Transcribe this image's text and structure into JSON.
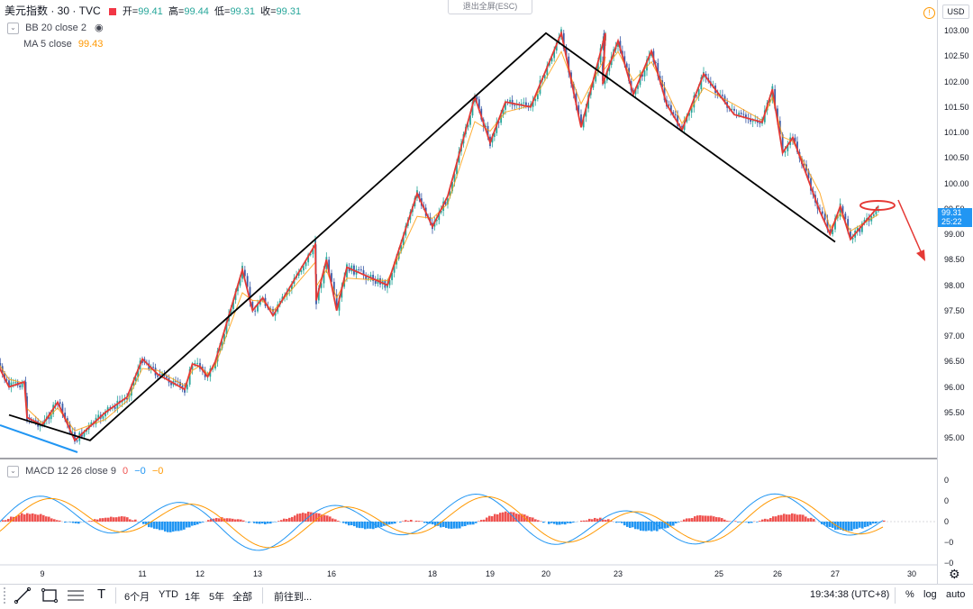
{
  "header": {
    "symbol": "美元指数 · 30 · TVC",
    "ohlc": [
      {
        "label": "开=",
        "value": "99.41"
      },
      {
        "label": "高=",
        "value": "99.44"
      },
      {
        "label": "低=",
        "value": "99.31"
      },
      {
        "label": "收=",
        "value": "99.31"
      }
    ],
    "bb_label": "BB 20 close 2",
    "ma_label": "MA 5 close",
    "ma_value": "99.43",
    "exit_fullscreen": "退出全屏(ESC)"
  },
  "macd_legend": {
    "label": "MACD 12 26 close 9",
    "v1": "0",
    "v2": "−0",
    "v3": "−0"
  },
  "price_axis": {
    "currency": "USD",
    "ticks": [
      "103.00",
      "102.50",
      "102.00",
      "101.50",
      "101.00",
      "100.50",
      "100.00",
      "99.50",
      "99.00",
      "98.50",
      "98.00",
      "97.50",
      "97.00",
      "96.50",
      "96.00",
      "95.50",
      "95.00"
    ],
    "current_price": "99.31",
    "countdown": "25:22",
    "macd_ticks": [
      "0",
      "0",
      "0",
      "−0",
      "−0"
    ]
  },
  "time_axis": {
    "ticks": [
      "9",
      "11",
      "12",
      "13",
      "16",
      "18",
      "19",
      "20",
      "23",
      "25",
      "26",
      "27",
      "30"
    ]
  },
  "bottom_bar": {
    "ranges": [
      "6个月",
      "YTD",
      "1年",
      "5年",
      "全部"
    ],
    "goto": "前往到...",
    "clock": "19:34:38 (UTC+8)",
    "percent": "%",
    "log": "log",
    "auto": "auto"
  },
  "colors": {
    "up": "#26a69a",
    "down": "#3b5ba8",
    "ma": "#ff9800",
    "zigzag": "#e53935",
    "trendline": "#000000",
    "macd_line": "#2196f3",
    "signal_line": "#ff9800",
    "hist_pos": "#ef5350",
    "hist_neg": "#2196f3",
    "accent": "#2196f3"
  },
  "chart_data": {
    "type": "line",
    "title": "美元指数 · 30 · TVC",
    "xlabel": "",
    "ylabel": "USD",
    "ylim": [
      94.8,
      103.2
    ],
    "x_ticks": [
      "9",
      "11",
      "12",
      "13",
      "16",
      "18",
      "19",
      "20",
      "23",
      "25",
      "26",
      "27",
      "30"
    ],
    "series": [
      {
        "name": "Red zigzag",
        "points": [
          {
            "x": "8",
            "y": 96.6
          },
          {
            "x": "8",
            "y": 96.0
          },
          {
            "x": "8",
            "y": 96.1
          },
          {
            "x": "9",
            "y": 95.4
          },
          {
            "x": "9",
            "y": 95.25
          },
          {
            "x": "9",
            "y": 95.7
          },
          {
            "x": "10",
            "y": 94.95
          },
          {
            "x": "10",
            "y": 95.5
          },
          {
            "x": "11",
            "y": 95.8
          },
          {
            "x": "11",
            "y": 96.55
          },
          {
            "x": "11",
            "y": 96.25
          },
          {
            "x": "12",
            "y": 95.95
          },
          {
            "x": "12",
            "y": 96.45
          },
          {
            "x": "12",
            "y": 96.4
          },
          {
            "x": "12",
            "y": 96.2
          },
          {
            "x": "12",
            "y": 96.5
          },
          {
            "x": "13",
            "y": 98.3
          },
          {
            "x": "13",
            "y": 97.5
          },
          {
            "x": "13",
            "y": 97.75
          },
          {
            "x": "13",
            "y": 97.4
          },
          {
            "x": "15",
            "y": 98.8
          },
          {
            "x": "16",
            "y": 97.7
          },
          {
            "x": "16",
            "y": 98.5
          },
          {
            "x": "16",
            "y": 97.5
          },
          {
            "x": "16",
            "y": 98.35
          },
          {
            "x": "17",
            "y": 98.0
          },
          {
            "x": "18",
            "y": 99.8
          },
          {
            "x": "18",
            "y": 99.15
          },
          {
            "x": "18",
            "y": 99.75
          },
          {
            "x": "19",
            "y": 101.7
          },
          {
            "x": "19",
            "y": 100.8
          },
          {
            "x": "19",
            "y": 101.6
          },
          {
            "x": "20",
            "y": 101.5
          },
          {
            "x": "20",
            "y": 102.95
          },
          {
            "x": "21",
            "y": 101.1
          },
          {
            "x": "22",
            "y": 102.95
          },
          {
            "x": "23",
            "y": 101.95
          },
          {
            "x": "23",
            "y": 102.8
          },
          {
            "x": "23",
            "y": 101.75
          },
          {
            "x": "24",
            "y": 102.6
          },
          {
            "x": "24",
            "y": 101.55
          },
          {
            "x": "24",
            "y": 101.05
          },
          {
            "x": "25",
            "y": 102.15
          },
          {
            "x": "25",
            "y": 101.35
          },
          {
            "x": "26",
            "y": 101.2
          },
          {
            "x": "26",
            "y": 101.85
          },
          {
            "x": "26",
            "y": 100.6
          },
          {
            "x": "26",
            "y": 100.9
          },
          {
            "x": "27",
            "y": 99.45
          },
          {
            "x": "27",
            "y": 99.0
          },
          {
            "x": "27",
            "y": 99.55
          },
          {
            "x": "27",
            "y": 98.9
          },
          {
            "x": "28",
            "y": 99.55
          }
        ]
      },
      {
        "name": "Black trendlines",
        "points": [
          {
            "x": "8",
            "y": 95.45
          },
          {
            "x": "10",
            "y": 94.95
          },
          {
            "x": "20",
            "y": 102.95
          },
          {
            "x": "27",
            "y": 98.85
          }
        ]
      }
    ],
    "annotations": [
      "red ellipse near 99.55 on 27-28",
      "red downward arrow"
    ],
    "macd": {
      "label": "MACD 12 26 close 9",
      "ticks": [
        "0",
        "0",
        "0",
        "−0",
        "−0"
      ]
    }
  }
}
